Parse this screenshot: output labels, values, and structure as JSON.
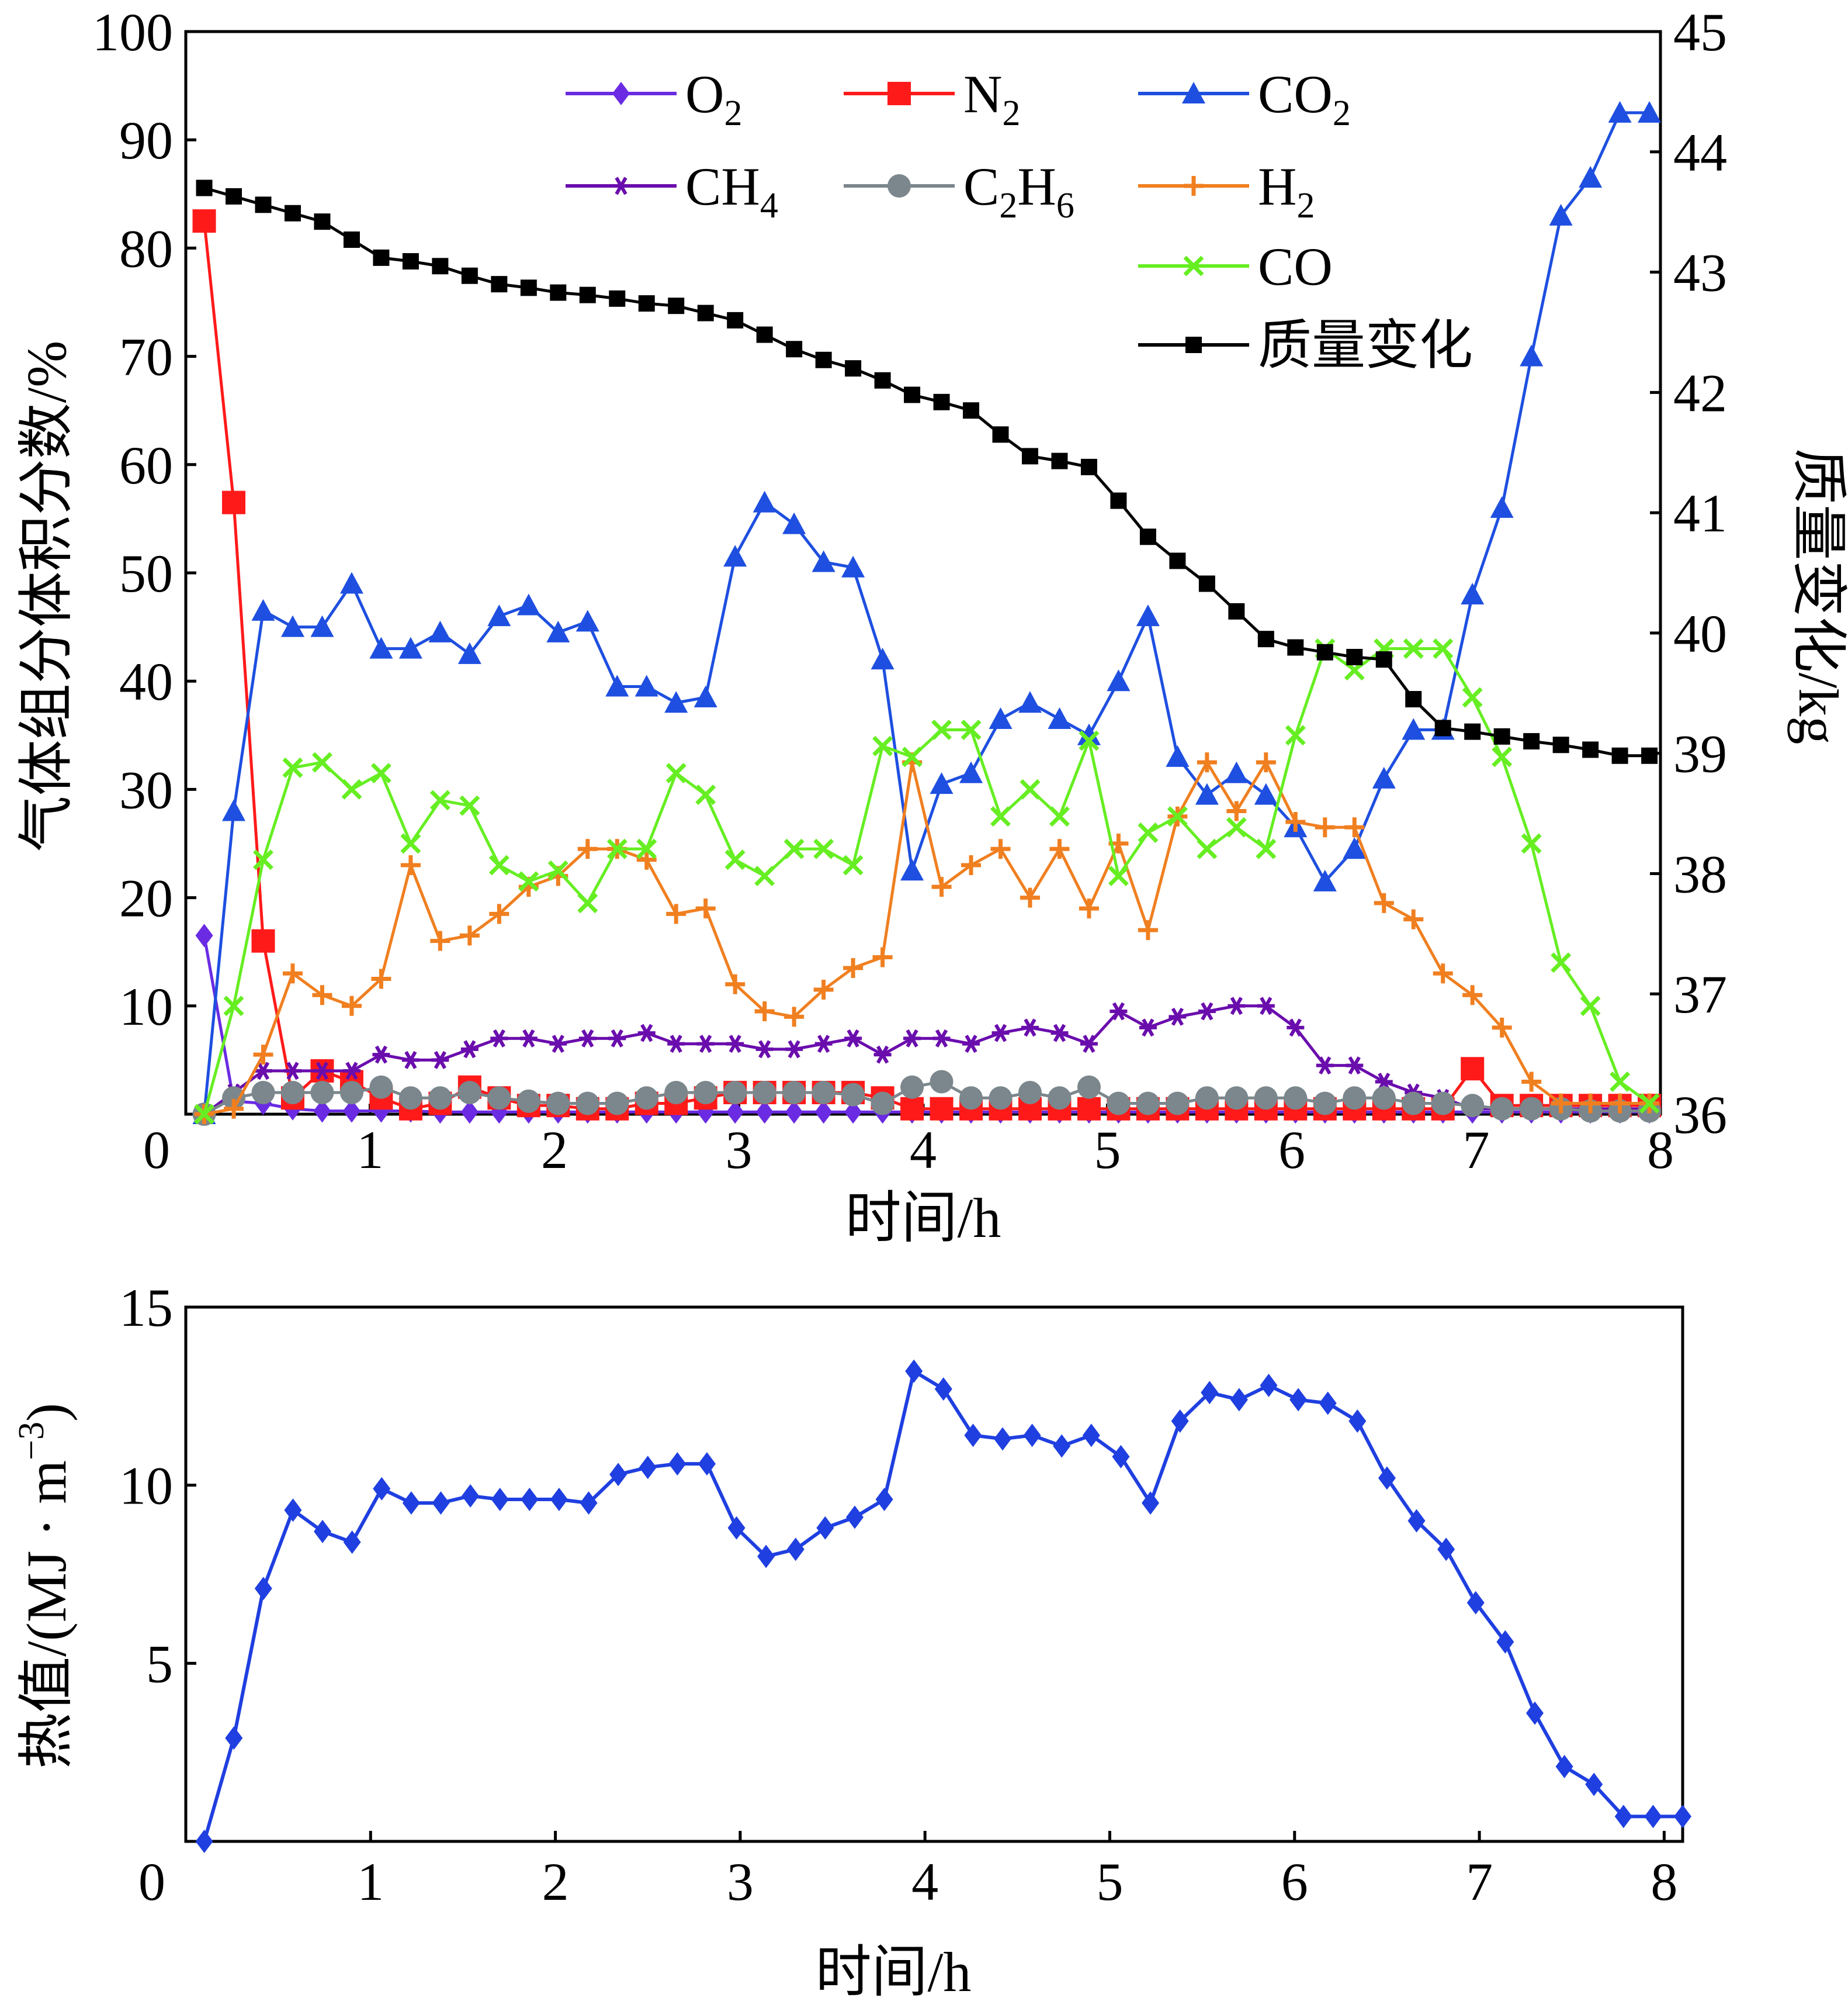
{
  "chart_data": [
    {
      "type": "line",
      "xlabel": "时间/h",
      "ylabel": "气体组分体积分数/%",
      "y2label": "质量变化/kg",
      "xlim": [
        0,
        8
      ],
      "ylim": [
        0,
        100
      ],
      "y2lim": [
        36,
        45
      ],
      "x_ticks": [
        0,
        1,
        2,
        3,
        4,
        5,
        6,
        7,
        8
      ],
      "y_ticks": [
        10,
        20,
        30,
        40,
        50,
        60,
        70,
        80,
        90,
        100
      ],
      "y2_ticks": [
        36,
        37,
        38,
        39,
        40,
        41,
        42,
        43,
        44,
        45
      ],
      "grid": false,
      "legend_position": "top-right",
      "x": [
        0.1,
        0.26,
        0.42,
        0.58,
        0.74,
        0.9,
        1.06,
        1.22,
        1.38,
        1.54,
        1.7,
        1.86,
        2.02,
        2.18,
        2.34,
        2.5,
        2.66,
        2.82,
        2.98,
        3.14,
        3.3,
        3.46,
        3.62,
        3.78,
        3.94,
        4.1,
        4.26,
        4.42,
        4.58,
        4.74,
        4.9,
        5.06,
        5.22,
        5.38,
        5.54,
        5.7,
        5.86,
        6.02,
        6.18,
        6.34,
        6.5,
        6.66,
        6.82,
        6.98,
        7.14,
        7.3,
        7.46,
        7.62,
        7.78,
        7.94
      ],
      "series": [
        {
          "name": "O",
          "sub": "2",
          "axis": "left",
          "color": "#6a2be2",
          "marker": "diamond",
          "values": [
            16.5,
            1.2,
            1,
            0.5,
            0.3,
            0.3,
            0.3,
            0.3,
            0.2,
            0.2,
            0.2,
            0.2,
            0.2,
            0.2,
            0.2,
            0.2,
            0.2,
            0.2,
            0.2,
            0.2,
            0.2,
            0.2,
            0.2,
            0.2,
            0.2,
            0.2,
            0.2,
            0.2,
            0.2,
            0.2,
            0.2,
            0.2,
            0.2,
            0.2,
            0.2,
            0.2,
            0.2,
            0.2,
            0.2,
            0.2,
            0.2,
            0.2,
            0.2,
            0.2,
            0.2,
            0.2,
            0.2,
            0.2,
            0.2,
            0.2
          ]
        },
        {
          "name": "N",
          "sub": "2",
          "axis": "left",
          "color": "#ff1a1a",
          "marker": "square",
          "values": [
            82.5,
            56.5,
            16,
            1.5,
            4,
            3,
            1.5,
            0.5,
            1,
            2.5,
            1.5,
            0.8,
            0.8,
            0.5,
            0.5,
            1,
            1,
            1.5,
            2,
            2,
            2,
            2,
            2,
            1.5,
            0.5,
            0.5,
            0.5,
            0.5,
            0.5,
            0.5,
            0.5,
            0.5,
            0.5,
            0.5,
            0.5,
            0.5,
            0.5,
            0.5,
            0.5,
            0.5,
            0.5,
            0.5,
            0.5,
            4.2,
            0.8,
            0.8,
            0.8,
            0.8,
            0.8,
            0.8
          ]
        },
        {
          "name": "CO",
          "sub": "2",
          "axis": "left",
          "color": "#1e4fe0",
          "marker": "triangle",
          "values": [
            0,
            28,
            46.5,
            45,
            45,
            49,
            43,
            43,
            44.5,
            42.5,
            46,
            47,
            44.5,
            45.5,
            39.5,
            39.5,
            38,
            38.5,
            51.5,
            56.5,
            54.5,
            51,
            50.5,
            42,
            22.5,
            30.5,
            31.5,
            36.5,
            38,
            36.5,
            35,
            40,
            46,
            33,
            29.5,
            31.5,
            29.5,
            26.5,
            21.5,
            24.5,
            31,
            35.5,
            35.5,
            48,
            56,
            70,
            83,
            86.5,
            92.5,
            92.5
          ]
        },
        {
          "name": "CH",
          "sub": "4",
          "axis": "left",
          "color": "#6a0dad",
          "marker": "asterisk",
          "values": [
            0,
            2,
            4,
            4,
            4,
            4,
            5.5,
            5,
            5,
            6,
            7,
            7,
            6.5,
            7,
            7,
            7.5,
            6.5,
            6.5,
            6.5,
            6,
            6,
            6.5,
            7,
            5.5,
            7,
            7,
            6.5,
            7.5,
            8,
            7.5,
            6.5,
            9.5,
            8,
            9,
            9.5,
            10,
            10,
            8,
            4.5,
            4.5,
            3,
            2,
            1.5,
            0.5,
            0.5,
            0.5,
            0.5,
            0.5,
            0.5,
            0.5
          ]
        },
        {
          "name": "C",
          "sub": "2",
          "name2": "H",
          "sub2": "6",
          "axis": "left",
          "color": "#7b878c",
          "marker": "circle",
          "values": [
            0,
            1.5,
            2,
            2,
            2,
            2,
            2.5,
            1.5,
            1.5,
            2,
            1.5,
            1.2,
            1,
            1,
            1,
            1.5,
            2,
            2,
            2,
            2,
            2,
            2,
            1.8,
            1,
            2.5,
            3,
            1.5,
            1.5,
            2,
            1.5,
            2.5,
            1,
            1,
            1,
            1.5,
            1.5,
            1.5,
            1.5,
            1,
            1.5,
            1.5,
            1,
            1,
            0.8,
            0.5,
            0.5,
            0.5,
            0.3,
            0.3,
            0.3
          ]
        },
        {
          "name": "H",
          "sub": "2",
          "axis": "left",
          "color": "#f07f20",
          "marker": "plus",
          "values": [
            0,
            0.5,
            5.5,
            13,
            11,
            10,
            12.5,
            23,
            16,
            16.5,
            18.5,
            21,
            22,
            24.5,
            24.5,
            23.5,
            18.5,
            19,
            12,
            9.5,
            9,
            11.5,
            13.5,
            14.5,
            32.5,
            21,
            23,
            24.5,
            20,
            24.5,
            19,
            25,
            17,
            27.5,
            32.5,
            28,
            32.5,
            27,
            26.5,
            26.5,
            19.5,
            18,
            13,
            11,
            8,
            3,
            1,
            1,
            1,
            1
          ]
        },
        {
          "name": "CO",
          "sub": "",
          "axis": "left",
          "color": "#66ee22",
          "marker": "x",
          "values": [
            0,
            10,
            23.5,
            32,
            32.5,
            30,
            31.5,
            25,
            29,
            28.5,
            23,
            21.5,
            22.5,
            19.5,
            24.5,
            24.5,
            31.5,
            29.5,
            23.5,
            22,
            24.5,
            24.5,
            23,
            34,
            33,
            35.5,
            35.5,
            27.5,
            30,
            27.5,
            34.5,
            22,
            26,
            27.5,
            24.5,
            26.5,
            24.5,
            35,
            43,
            41,
            43,
            43,
            43,
            38.5,
            33,
            25,
            14,
            10,
            3,
            1
          ]
        },
        {
          "name": "质量变化",
          "sub": "",
          "axis": "right",
          "color": "#000000",
          "marker": "square-small",
          "values": [
            43.7,
            43.63,
            43.56,
            43.49,
            43.42,
            43.27,
            43.12,
            43.09,
            43.05,
            42.97,
            42.9,
            42.87,
            42.83,
            42.81,
            42.78,
            42.74,
            42.72,
            42.66,
            42.6,
            42.48,
            42.36,
            42.27,
            42.2,
            42.1,
            41.98,
            41.92,
            41.85,
            41.65,
            41.47,
            41.43,
            41.38,
            41.1,
            40.8,
            40.6,
            40.41,
            40.18,
            39.95,
            39.88,
            39.84,
            39.8,
            39.78,
            39.45,
            39.21,
            39.18,
            39.14,
            39.1,
            39.07,
            39.03,
            38.98,
            38.98
          ]
        }
      ]
    },
    {
      "type": "line",
      "xlabel": "时间/h",
      "ylabel_main": "热值/(MJ · m",
      "ylabel_sup": "−3",
      "ylabel_end": ")",
      "xlim": [
        0,
        8.1
      ],
      "ylim": [
        0,
        15
      ],
      "x_ticks": [
        0,
        1,
        2,
        3,
        4,
        5,
        6,
        7,
        8
      ],
      "y_ticks": [
        5,
        10,
        15
      ],
      "grid": false,
      "color": "#1f3fe0",
      "marker": "diamond",
      "x": [
        0.1,
        0.26,
        0.42,
        0.58,
        0.74,
        0.9,
        1.06,
        1.22,
        1.38,
        1.54,
        1.7,
        1.86,
        2.02,
        2.18,
        2.34,
        2.5,
        2.66,
        2.82,
        2.98,
        3.14,
        3.3,
        3.46,
        3.62,
        3.78,
        3.94,
        4.1,
        4.26,
        4.42,
        4.58,
        4.74,
        4.9,
        5.06,
        5.22,
        5.38,
        5.54,
        5.7,
        5.86,
        6.02,
        6.18,
        6.34,
        6.5,
        6.66,
        6.82,
        6.98,
        7.14,
        7.3,
        7.46,
        7.62,
        7.78,
        7.94,
        8.1
      ],
      "values": [
        0,
        2.9,
        7.1,
        9.3,
        8.7,
        8.4,
        9.9,
        9.5,
        9.5,
        9.7,
        9.6,
        9.6,
        9.6,
        9.5,
        10.3,
        10.5,
        10.6,
        10.6,
        8.8,
        8,
        8.2,
        8.8,
        9.1,
        9.6,
        13.2,
        12.7,
        11.4,
        11.3,
        11.4,
        11.1,
        11.4,
        10.8,
        9.5,
        11.8,
        12.6,
        12.4,
        12.8,
        12.4,
        12.3,
        11.8,
        10.2,
        9,
        8.2,
        6.7,
        5.6,
        3.6,
        2.1,
        1.6,
        0.7,
        0.7,
        0.7
      ]
    }
  ]
}
